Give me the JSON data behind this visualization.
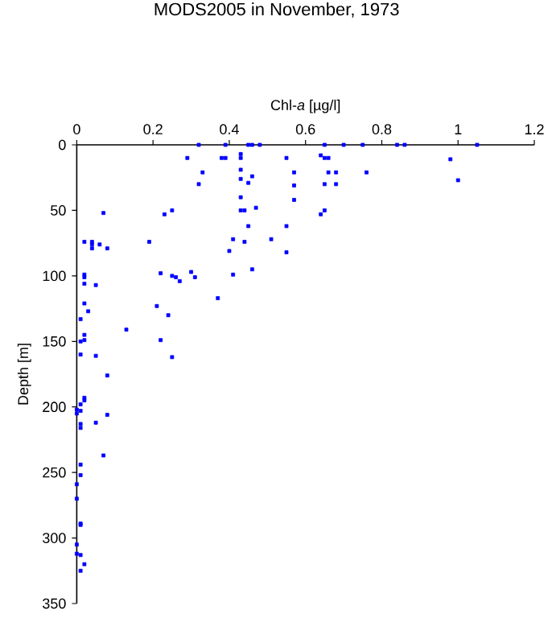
{
  "chart_data": {
    "type": "scatter",
    "title": "MODS2005 in November, 1973",
    "xlabel": "Chl-*a* [µg/l]",
    "ylabel": "Depth [m]",
    "xlim": [
      0,
      1.2
    ],
    "xticks": [
      0,
      0.2,
      0.4,
      0.6,
      0.8,
      1,
      1.2
    ],
    "ylim": [
      350,
      0
    ],
    "yticks": [
      0,
      50,
      100,
      150,
      200,
      250,
      300,
      350
    ],
    "grid": false,
    "marker": "square",
    "series": [
      {
        "color": "#0000ff",
        "x": [
          0.32,
          0.39,
          0.45,
          0.46,
          0.48,
          0.65,
          0.7,
          0.75,
          0.84,
          0.86,
          1.05,
          0.29,
          0.38,
          0.39,
          0.43,
          0.43,
          0.55,
          0.64,
          0.65,
          0.66,
          0.98,
          0.43,
          0.33,
          0.57,
          0.66,
          0.68,
          0.76,
          0.43,
          0.46,
          0.45,
          0.32,
          0.57,
          0.65,
          0.68,
          1.0,
          0.57,
          0.43,
          0.23,
          0.25,
          0.43,
          0.44,
          0.47,
          0.45,
          0.55,
          0.65,
          0.64,
          0.07,
          0.02,
          0.04,
          0.04,
          0.06,
          0.04,
          0.08,
          0.19,
          0.41,
          0.44,
          0.51,
          0.4,
          0.55,
          0.02,
          0.02,
          0.02,
          0.05,
          0.22,
          0.25,
          0.26,
          0.27,
          0.3,
          0.31,
          0.41,
          0.46,
          0.02,
          0.03,
          0.01,
          0.02,
          0.01,
          0.02,
          0.01,
          0.05,
          0.13,
          0.21,
          0.24,
          0.22,
          0.25,
          0.37,
          0.08,
          0.02,
          0.02,
          0.01,
          0.0,
          0.01,
          0.0,
          0.08,
          0.05,
          0.01,
          0.01,
          0.07,
          0.01,
          0.01,
          0.0,
          0.0,
          0.01,
          0.01,
          0.0,
          0.0,
          0.01,
          0.02,
          0.01
        ],
        "values": [
          0,
          0,
          0,
          0,
          0,
          0,
          0,
          0,
          0,
          0,
          0,
          10,
          10,
          10,
          7,
          10,
          10,
          8,
          10,
          10,
          11,
          19,
          21,
          21,
          21,
          21,
          21,
          26,
          24,
          29,
          30,
          31,
          30,
          30,
          27,
          42,
          40,
          53,
          50,
          50,
          50,
          48,
          62,
          62,
          50,
          53,
          52,
          74,
          74,
          76,
          76,
          79,
          79,
          74,
          72,
          74,
          72,
          81,
          82,
          99,
          101,
          106,
          107,
          98,
          100,
          101,
          104,
          97,
          101,
          99,
          95,
          121,
          127,
          133,
          145,
          150,
          149,
          160,
          161,
          141,
          123,
          130,
          149,
          162,
          117,
          176,
          193,
          195,
          198,
          205,
          203,
          202,
          206,
          212,
          213,
          216,
          237,
          244,
          252,
          259,
          270,
          289,
          290,
          305,
          312,
          313,
          320,
          325
        ]
      }
    ]
  }
}
